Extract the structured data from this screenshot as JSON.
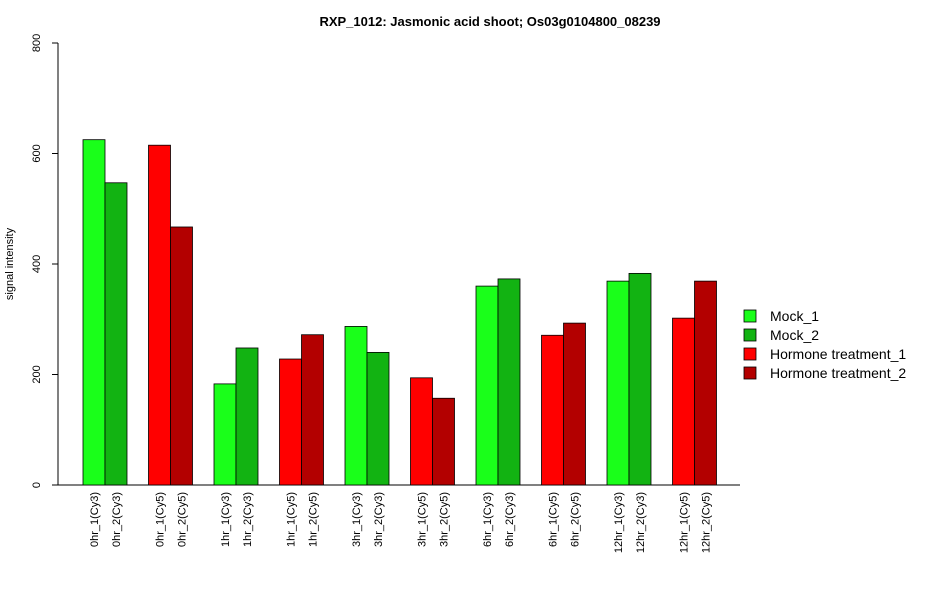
{
  "chart_data": {
    "type": "bar",
    "title": "RXP_1012: Jasmonic acid shoot; Os03g0104800_08239",
    "xlabel": "",
    "ylabel": "signal intensity",
    "ylim": [
      0,
      800
    ],
    "yticks": [
      0,
      200,
      400,
      600,
      800
    ],
    "legend_position": "right",
    "grid": false,
    "legend": [
      {
        "name": "Mock_1",
        "color": "#1aff1a"
      },
      {
        "name": "Mock_2",
        "color": "#12b312"
      },
      {
        "name": "Hormone treatment_1",
        "color": "#ff0000"
      },
      {
        "name": "Hormone treatment_2",
        "color": "#b30000"
      }
    ],
    "bars": [
      {
        "label": "0hr_1(Cy3)",
        "value": 625,
        "series": 0
      },
      {
        "label": "0hr_2(Cy3)",
        "value": 547,
        "series": 1
      },
      {
        "label": "0hr_1(Cy5)",
        "value": 615,
        "series": 2
      },
      {
        "label": "0hr_2(Cy5)",
        "value": 467,
        "series": 3
      },
      {
        "label": "1hr_1(Cy3)",
        "value": 183,
        "series": 0
      },
      {
        "label": "1hr_2(Cy3)",
        "value": 248,
        "series": 1
      },
      {
        "label": "1hr_1(Cy5)",
        "value": 228,
        "series": 2
      },
      {
        "label": "1hr_2(Cy5)",
        "value": 272,
        "series": 3
      },
      {
        "label": "3hr_1(Cy3)",
        "value": 287,
        "series": 0
      },
      {
        "label": "3hr_2(Cy3)",
        "value": 240,
        "series": 1
      },
      {
        "label": "3hr_1(Cy5)",
        "value": 194,
        "series": 2
      },
      {
        "label": "3hr_2(Cy5)",
        "value": 157,
        "series": 3
      },
      {
        "label": "6hr_1(Cy3)",
        "value": 360,
        "series": 0
      },
      {
        "label": "6hr_2(Cy3)",
        "value": 373,
        "series": 1
      },
      {
        "label": "6hr_1(Cy5)",
        "value": 271,
        "series": 2
      },
      {
        "label": "6hr_2(Cy5)",
        "value": 293,
        "series": 3
      },
      {
        "label": "12hr_1(Cy3)",
        "value": 369,
        "series": 0
      },
      {
        "label": "12hr_2(Cy3)",
        "value": 383,
        "series": 1
      },
      {
        "label": "12hr_1(Cy5)",
        "value": 302,
        "series": 2
      },
      {
        "label": "12hr_2(Cy5)",
        "value": 369,
        "series": 3
      }
    ]
  }
}
